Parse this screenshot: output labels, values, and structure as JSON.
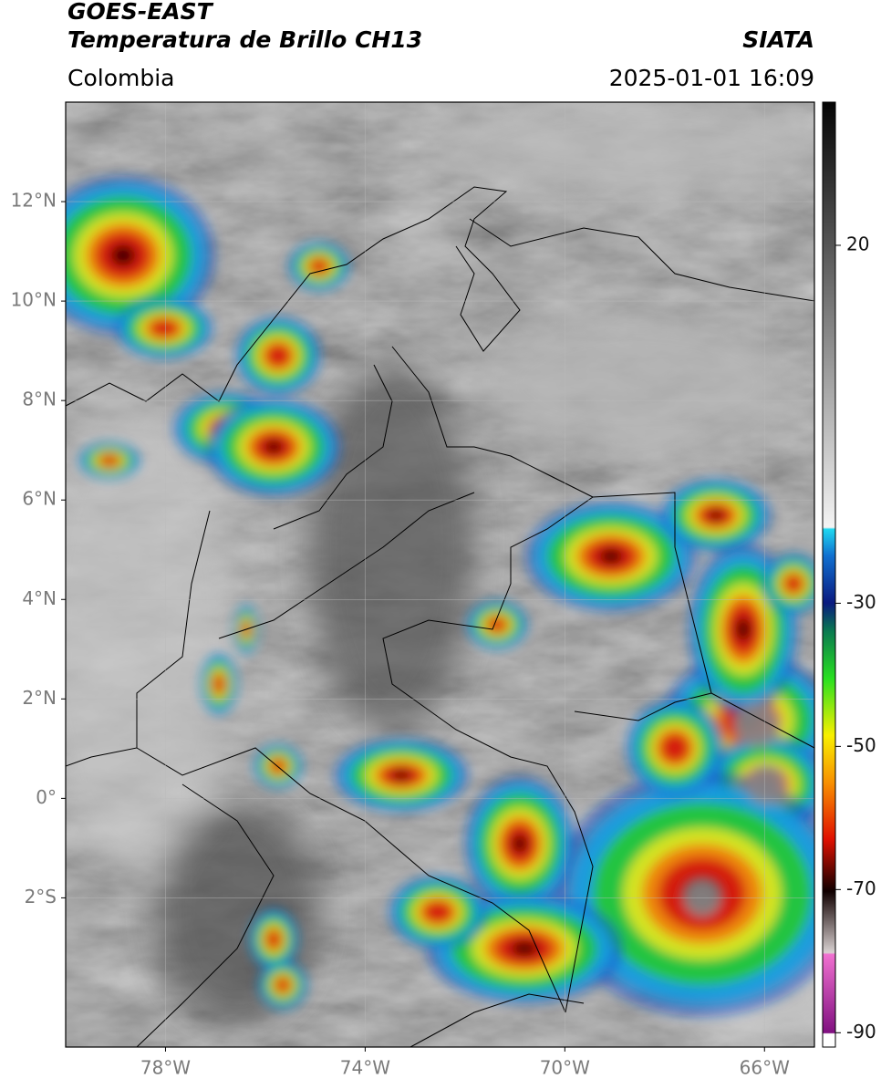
{
  "header": {
    "title": "GOES-EAST",
    "subtitle": "Temperatura de Brillo CH13",
    "source": "SIATA",
    "region": "Colombia",
    "datetime": "2025-01-01 16:09"
  },
  "map": {
    "xlim": [
      -80,
      -65
    ],
    "ylim": [
      -5,
      14
    ],
    "xticks": [
      {
        "value": -78,
        "label": "78°W"
      },
      {
        "value": -74,
        "label": "74°W"
      },
      {
        "value": -70,
        "label": "70°W"
      },
      {
        "value": -66,
        "label": "66°W"
      }
    ],
    "yticks": [
      {
        "value": 12,
        "label": "12°N"
      },
      {
        "value": 10,
        "label": "10°N"
      },
      {
        "value": 8,
        "label": "8°N"
      },
      {
        "value": 6,
        "label": "6°N"
      },
      {
        "value": 4,
        "label": "4°N"
      },
      {
        "value": 2,
        "label": "2°N"
      },
      {
        "value": 0,
        "label": "0°"
      },
      {
        "value": -2,
        "label": "2°S"
      }
    ],
    "grid": true
  },
  "colorbar": {
    "lim": [
      -92,
      40
    ],
    "ticks": [
      20,
      -30,
      -50,
      -70,
      -90
    ]
  }
}
